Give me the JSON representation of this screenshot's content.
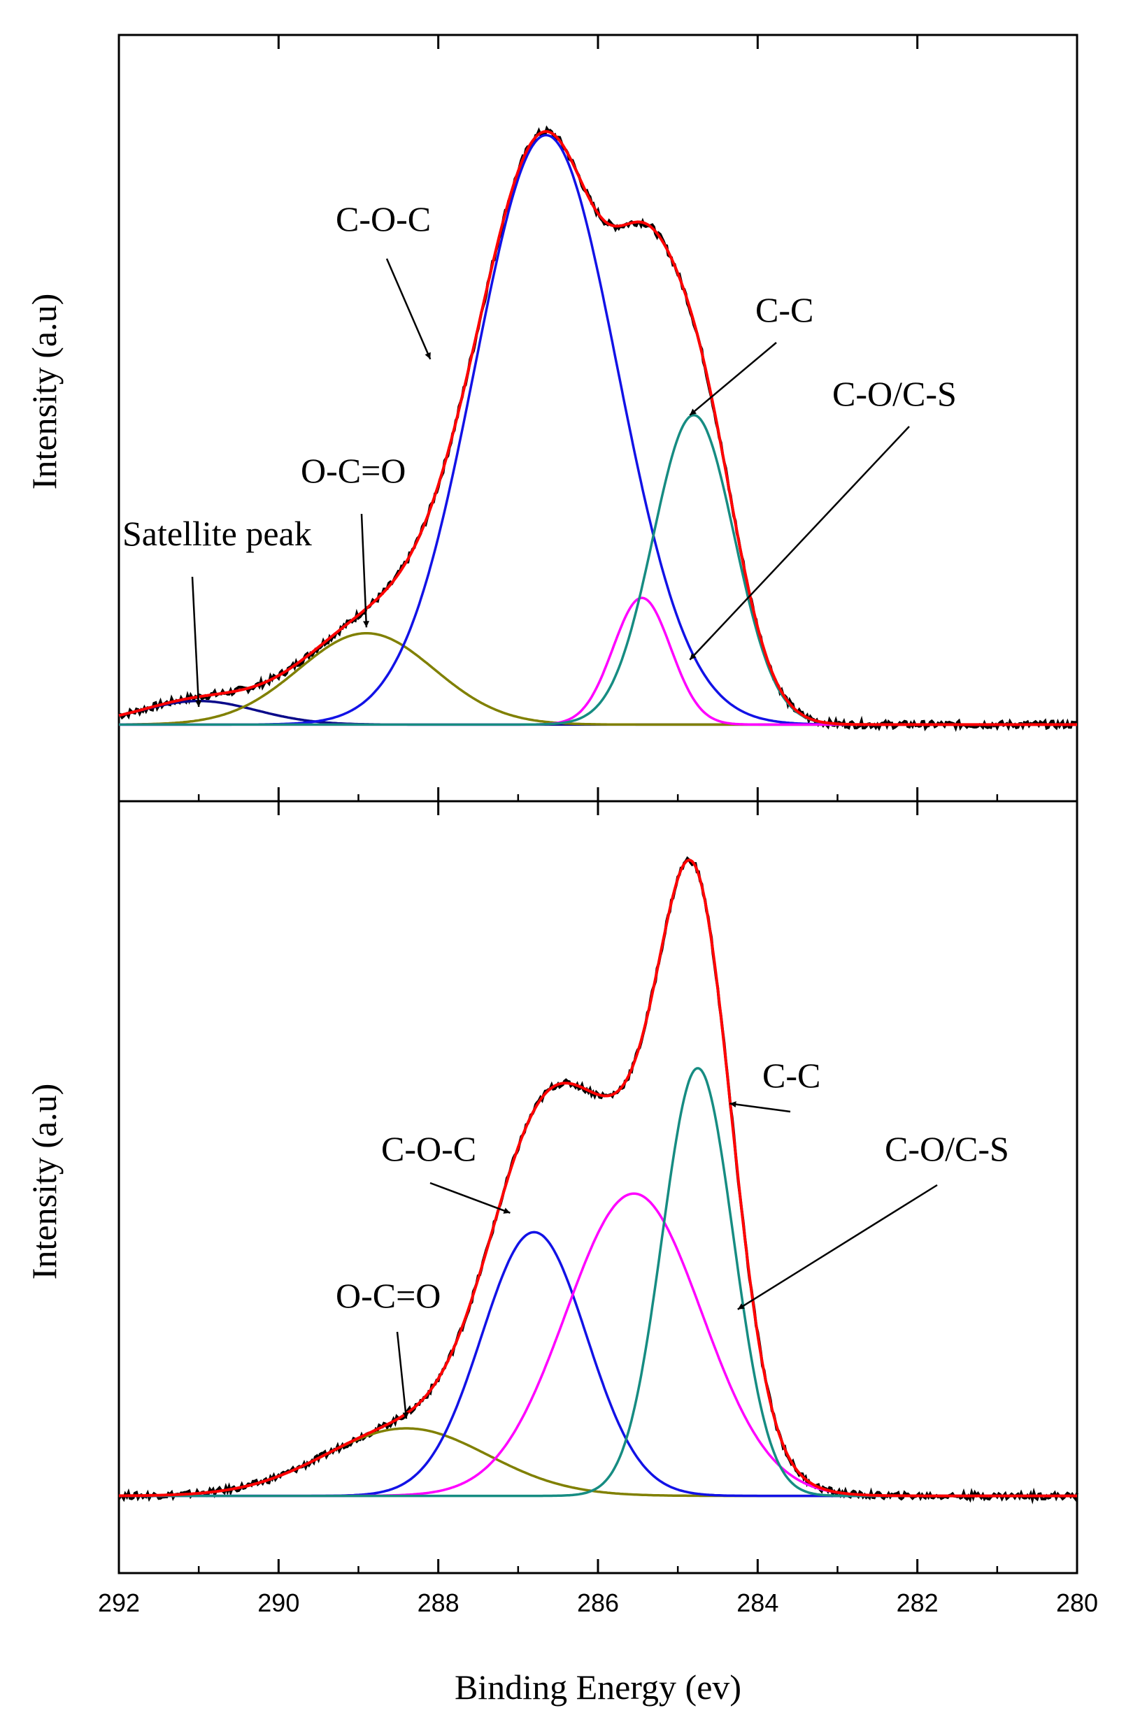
{
  "chart_data": [
    {
      "type": "line",
      "title": "",
      "xlabel": "",
      "ylabel": "Intensity (a.u)",
      "xlim": [
        292,
        280
      ],
      "x_reversed": true,
      "ylim": [
        -0.12,
        1.18
      ],
      "grid": false,
      "legend": "none",
      "envelope": {
        "experimental": {
          "color": "#000000"
        },
        "fit": {
          "color": "#ff0000"
        }
      },
      "baseline": 0.01,
      "noise_amplitude": 0.006,
      "components": [
        {
          "id": "satellite",
          "center": 291.0,
          "height": 0.04,
          "fwhm": 1.7,
          "color": "#0a0a8a"
        },
        {
          "id": "ocoo",
          "center": 288.9,
          "height": 0.155,
          "fwhm": 2.0,
          "color": "#808000"
        },
        {
          "id": "coc",
          "center": 286.65,
          "height": 1.0,
          "fwhm": 2.1,
          "color": "#1212e6"
        },
        {
          "id": "cocs",
          "center": 285.45,
          "height": 0.215,
          "fwhm": 0.85,
          "color": "#ff00ff"
        },
        {
          "id": "cc",
          "center": 284.8,
          "height": 0.525,
          "fwhm": 1.2,
          "color": "#168c82"
        }
      ],
      "annotations": [
        {
          "text": "Satellite peak",
          "x": 291.0,
          "y": 0.04,
          "direction": "down"
        },
        {
          "text": "O-C=O",
          "x": 288.9,
          "y": 0.175,
          "direction": "down"
        },
        {
          "text": "C-O-C",
          "x": 288.1,
          "y": 0.63,
          "direction": "down-right"
        },
        {
          "text": "C-C",
          "x": 284.85,
          "y": 0.535,
          "direction": "down-left"
        },
        {
          "text": "C-O/C-S",
          "x": 284.85,
          "y": 0.12,
          "direction": "down-left"
        }
      ]
    },
    {
      "type": "line",
      "title": "",
      "xlabel": "Binding Energy (ev)",
      "ylabel": "Intensity (a.u)",
      "xlim": [
        292,
        280
      ],
      "x_reversed": true,
      "xticks": [
        "292",
        "290",
        "288",
        "286",
        "284",
        "282",
        "280"
      ],
      "xtick_values": [
        292,
        290,
        288,
        286,
        284,
        282,
        280
      ],
      "ylim": [
        -0.12,
        1.08
      ],
      "grid": false,
      "legend": "none",
      "envelope": {
        "experimental": {
          "color": "#000000"
        },
        "fit": {
          "color": "#ff0000"
        }
      },
      "baseline": 0.0,
      "noise_amplitude": 0.005,
      "components": [
        {
          "id": "ocoo",
          "center": 288.4,
          "height": 0.105,
          "fwhm": 2.4,
          "color": "#808000"
        },
        {
          "id": "coc",
          "center": 286.8,
          "height": 0.41,
          "fwhm": 1.55,
          "color": "#1212e6"
        },
        {
          "id": "cocs",
          "center": 285.55,
          "height": 0.47,
          "fwhm": 2.0,
          "color": "#ff00ff"
        },
        {
          "id": "cc",
          "center": 284.75,
          "height": 0.665,
          "fwhm": 1.05,
          "color": "#168c82"
        }
      ],
      "annotations": [
        {
          "text": "O-C=O",
          "x": 288.4,
          "y": 0.12,
          "direction": "down"
        },
        {
          "text": "C-O-C",
          "x": 287.1,
          "y": 0.44,
          "direction": "down-right"
        },
        {
          "text": "C-C",
          "x": 284.35,
          "y": 0.61,
          "direction": "down-left"
        },
        {
          "text": "C-O/C-S",
          "x": 284.25,
          "y": 0.29,
          "direction": "down-left"
        }
      ]
    }
  ]
}
